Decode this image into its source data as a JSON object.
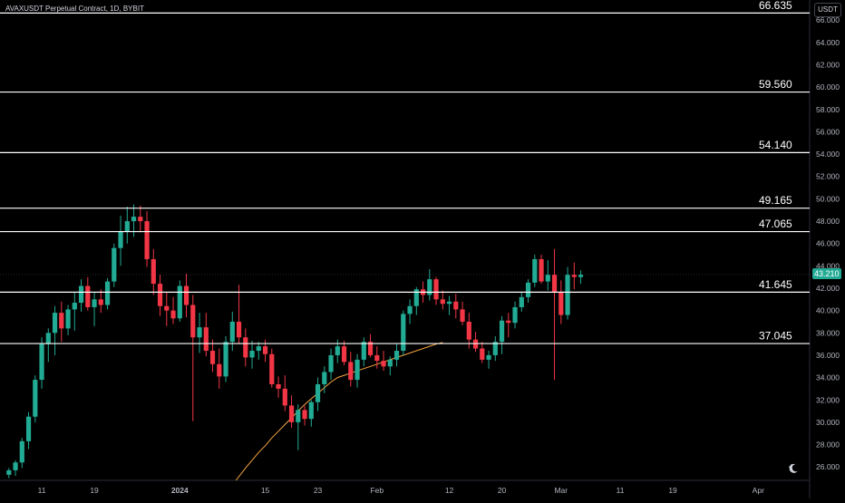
{
  "header": {
    "symbol_title": "AVAXUSDT Perpetual Contract, 1D, BYBIT",
    "currency": "USDT"
  },
  "colors": {
    "background": "#000000",
    "up": "#22ab94",
    "down": "#f23645",
    "level_line": "#ffffff",
    "moving_average": "#f7a440",
    "axis_text": "#b2b5be",
    "last_price_bg": "#22ab94"
  },
  "icons": [
    "moon-icon"
  ],
  "chart_data": {
    "type": "candlestick",
    "title": "AVAXUSDT Perpetual Contract, 1D, BYBIT",
    "ylim": [
      24.8,
      67.8
    ],
    "yticks": [
      "26.000",
      "28.000",
      "30.000",
      "32.000",
      "34.000",
      "36.000",
      "38.000",
      "40.000",
      "42.000",
      "44.000",
      "46.000",
      "48.000",
      "50.000",
      "52.000",
      "54.000",
      "56.000",
      "58.000",
      "60.000",
      "62.000",
      "64.000",
      "66.000"
    ],
    "xticks": [
      "11",
      "19",
      "2024",
      "15",
      "23",
      "Feb",
      "12",
      "20",
      "Mar",
      "11",
      "19",
      "Apr"
    ],
    "levels": [
      "66.635",
      "59.560",
      "54.140",
      "49.165",
      "47.065",
      "41.645",
      "37.045"
    ],
    "last_price": "43.210",
    "last_price_value": 43.21,
    "candles": [
      [
        25.3,
        25.9,
        25.0,
        25.7
      ],
      [
        25.7,
        26.6,
        25.2,
        26.4
      ],
      [
        26.4,
        28.6,
        25.9,
        28.3
      ],
      [
        28.3,
        30.9,
        27.6,
        30.5
      ],
      [
        30.5,
        34.2,
        30.0,
        33.8
      ],
      [
        33.8,
        37.6,
        33.0,
        37.0
      ],
      [
        37.0,
        38.4,
        35.4,
        38.0
      ],
      [
        38.0,
        40.4,
        36.0,
        39.8
      ],
      [
        39.8,
        40.8,
        37.2,
        38.4
      ],
      [
        38.4,
        40.5,
        37.8,
        40.1
      ],
      [
        40.1,
        41.6,
        38.2,
        40.7
      ],
      [
        40.7,
        42.8,
        39.9,
        42.2
      ],
      [
        42.2,
        43.0,
        40.0,
        40.3
      ],
      [
        40.3,
        41.6,
        38.6,
        41.0
      ],
      [
        41.0,
        41.9,
        39.8,
        40.5
      ],
      [
        40.5,
        42.9,
        40.1,
        42.6
      ],
      [
        42.6,
        46.0,
        42.1,
        45.6
      ],
      [
        45.6,
        48.5,
        44.0,
        47.1
      ],
      [
        47.1,
        49.3,
        46.0,
        48.0
      ],
      [
        48.0,
        49.5,
        46.6,
        48.4
      ],
      [
        48.4,
        49.4,
        47.0,
        48.0
      ],
      [
        48.0,
        48.9,
        43.9,
        44.6
      ],
      [
        44.6,
        45.5,
        41.4,
        42.4
      ],
      [
        42.4,
        43.2,
        39.5,
        40.4
      ],
      [
        40.4,
        41.6,
        38.6,
        40.0
      ],
      [
        40.0,
        41.2,
        38.8,
        39.3
      ],
      [
        39.3,
        42.7,
        39.0,
        42.2
      ],
      [
        42.2,
        43.3,
        39.4,
        40.5
      ],
      [
        40.5,
        41.4,
        30.1,
        37.6
      ],
      [
        37.6,
        39.8,
        36.2,
        38.5
      ],
      [
        38.5,
        39.8,
        35.9,
        36.4
      ],
      [
        36.4,
        37.4,
        34.5,
        35.2
      ],
      [
        35.2,
        36.6,
        33.0,
        34.1
      ],
      [
        34.1,
        37.7,
        33.6,
        37.2
      ],
      [
        37.2,
        39.9,
        36.4,
        39.0
      ],
      [
        39.0,
        42.3,
        37.0,
        37.6
      ],
      [
        37.6,
        38.4,
        35.0,
        35.8
      ],
      [
        35.8,
        37.3,
        34.8,
        36.4
      ],
      [
        36.4,
        37.2,
        35.6,
        36.8
      ],
      [
        36.8,
        37.4,
        35.4,
        36.1
      ],
      [
        36.1,
        36.6,
        33.1,
        33.4
      ],
      [
        33.4,
        34.1,
        32.2,
        33.0
      ],
      [
        33.0,
        34.2,
        31.0,
        31.5
      ],
      [
        31.5,
        32.4,
        29.5,
        30.0
      ],
      [
        30.0,
        31.6,
        27.5,
        31.1
      ],
      [
        31.1,
        31.5,
        29.7,
        30.3
      ],
      [
        30.3,
        32.0,
        29.6,
        31.8
      ],
      [
        31.8,
        34.0,
        31.0,
        33.4
      ],
      [
        33.4,
        35.0,
        32.6,
        34.5
      ],
      [
        34.5,
        36.6,
        33.8,
        36.0
      ],
      [
        36.0,
        37.4,
        35.3,
        36.8
      ],
      [
        36.8,
        37.3,
        35.1,
        35.4
      ],
      [
        35.4,
        36.3,
        33.2,
        33.8
      ],
      [
        33.8,
        36.1,
        33.1,
        35.6
      ],
      [
        35.6,
        37.6,
        35.0,
        37.2
      ],
      [
        37.2,
        37.9,
        35.8,
        36.0
      ],
      [
        36.0,
        36.8,
        34.8,
        35.5
      ],
      [
        35.5,
        36.4,
        34.6,
        35.0
      ],
      [
        35.0,
        35.9,
        34.2,
        35.6
      ],
      [
        35.6,
        37.0,
        35.0,
        36.4
      ],
      [
        36.4,
        40.0,
        36.0,
        39.7
      ],
      [
        39.7,
        41.0,
        38.8,
        40.4
      ],
      [
        40.4,
        42.1,
        39.6,
        41.9
      ],
      [
        41.9,
        42.6,
        40.7,
        41.4
      ],
      [
        41.4,
        43.7,
        40.9,
        42.8
      ],
      [
        42.8,
        43.0,
        40.5,
        41.0
      ],
      [
        41.0,
        41.8,
        40.1,
        40.6
      ],
      [
        40.6,
        41.3,
        39.6,
        40.8
      ],
      [
        40.8,
        41.5,
        39.3,
        40.1
      ],
      [
        40.1,
        40.8,
        38.7,
        39.0
      ],
      [
        39.0,
        39.8,
        36.6,
        37.4
      ],
      [
        37.4,
        38.1,
        36.3,
        36.6
      ],
      [
        36.6,
        37.2,
        35.3,
        35.6
      ],
      [
        35.6,
        36.4,
        34.8,
        36.0
      ],
      [
        36.0,
        37.7,
        35.5,
        37.2
      ],
      [
        37.2,
        39.5,
        36.1,
        39.1
      ],
      [
        39.1,
        39.8,
        37.6,
        38.9
      ],
      [
        38.9,
        40.8,
        38.4,
        40.3
      ],
      [
        40.3,
        41.6,
        39.9,
        41.2
      ],
      [
        41.2,
        42.8,
        40.7,
        42.5
      ],
      [
        42.5,
        45.0,
        42.1,
        44.6
      ],
      [
        44.6,
        45.0,
        42.4,
        42.6
      ],
      [
        42.6,
        44.5,
        41.8,
        43.2
      ],
      [
        43.2,
        45.5,
        33.8,
        41.6
      ],
      [
        41.6,
        42.7,
        38.8,
        39.6
      ],
      [
        39.6,
        43.9,
        39.2,
        43.2
      ],
      [
        43.2,
        44.3,
        41.9,
        43.0
      ],
      [
        43.0,
        43.6,
        42.4,
        43.21
      ]
    ],
    "ma200": [
      [
        34.55,
        24.8
      ],
      [
        36.0,
        25.9
      ],
      [
        37.0,
        26.6
      ],
      [
        38.0,
        27.3
      ],
      [
        39.0,
        27.9
      ],
      [
        40.0,
        28.6
      ],
      [
        41.0,
        29.2
      ],
      [
        42.0,
        29.8
      ],
      [
        43.0,
        30.4
      ],
      [
        44.0,
        31.0
      ],
      [
        45.0,
        31.6
      ],
      [
        46.0,
        32.1
      ],
      [
        47.0,
        32.6
      ],
      [
        48.0,
        33.1
      ],
      [
        49.0,
        33.6
      ],
      [
        50.0,
        34.0
      ],
      [
        51.0,
        34.2
      ],
      [
        52.0,
        34.4
      ],
      [
        53.0,
        34.6
      ],
      [
        54.0,
        34.8
      ],
      [
        55.0,
        35.0
      ],
      [
        56.0,
        35.2
      ],
      [
        57.0,
        35.4
      ],
      [
        58.0,
        35.6
      ],
      [
        59.0,
        35.8
      ],
      [
        60.0,
        36.0
      ],
      [
        61.0,
        36.2
      ],
      [
        62.0,
        36.4
      ],
      [
        63.0,
        36.6
      ],
      [
        64.0,
        36.8
      ],
      [
        65.0,
        37.0
      ],
      [
        66.0,
        37.15
      ]
    ]
  }
}
